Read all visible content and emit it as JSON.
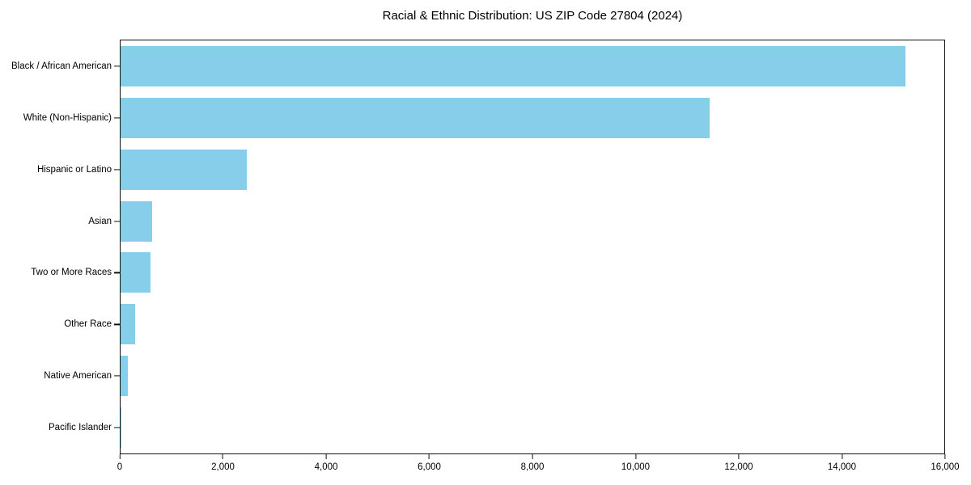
{
  "title": "Racial & Ethnic Distribution: US ZIP Code 27804 (2024)",
  "colors": {
    "bar": "#87CEEB",
    "axis": "#111111",
    "background": "#FFFFFF"
  },
  "chart_data": {
    "type": "bar",
    "orientation": "horizontal",
    "title": "Racial & Ethnic Distribution: US ZIP Code 27804 (2024)",
    "categories": [
      "Black / African American",
      "White (Non-Hispanic)",
      "Hispanic or Latino",
      "Asian",
      "Two or More Races",
      "Other Race",
      "Native American",
      "Pacific Islander"
    ],
    "values": [
      15250,
      11440,
      2450,
      610,
      575,
      280,
      140,
      15
    ],
    "xlabel": "",
    "ylabel": "",
    "xlim": [
      0,
      16000
    ],
    "xticks": [
      0,
      2000,
      4000,
      6000,
      8000,
      10000,
      12000,
      14000,
      16000
    ],
    "xtick_labels": [
      "0",
      "2,000",
      "4,000",
      "6,000",
      "8,000",
      "10,000",
      "12,000",
      "14,000",
      "16,000"
    ],
    "grid": false,
    "legend": null,
    "bar_color": "#87CEEB"
  }
}
